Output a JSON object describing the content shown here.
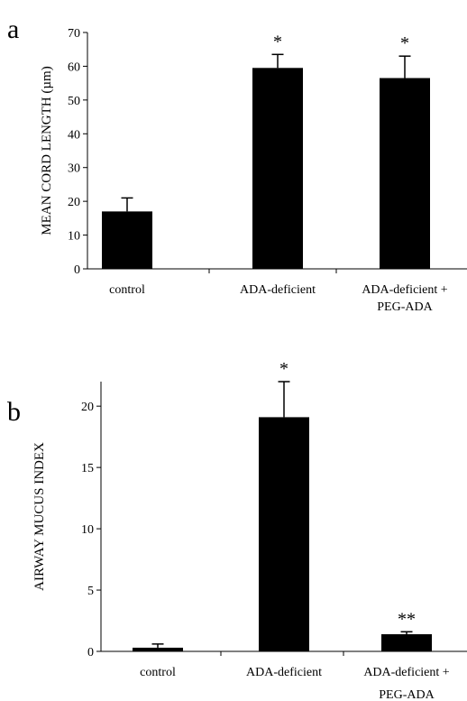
{
  "chart_data": [
    {
      "type": "bar",
      "panel_label": "a",
      "ylabel": "MEAN CORD LENGTH (µm)",
      "ylim": [
        0,
        70
      ],
      "yticks": [
        0,
        10,
        20,
        30,
        40,
        50,
        60,
        70
      ],
      "categories": [
        [
          "control"
        ],
        [
          "ADA-deficient"
        ],
        [
          "ADA-deficient +",
          "PEG-ADA"
        ]
      ],
      "values": [
        17,
        59.5,
        56.5
      ],
      "errors": [
        4,
        4,
        6.5
      ],
      "annotations": [
        "",
        "*",
        "*"
      ],
      "bar_color": "#000000"
    },
    {
      "type": "bar",
      "panel_label": "b",
      "ylabel": "AIRWAY MUCUS INDEX",
      "ylim": [
        0,
        22
      ],
      "yticks": [
        0,
        5,
        10,
        15,
        20
      ],
      "categories": [
        [
          "control"
        ],
        [
          "ADA-deficient"
        ],
        [
          "ADA-deficient +",
          "PEG-ADA"
        ]
      ],
      "values": [
        0.3,
        19.1,
        1.4
      ],
      "errors": [
        0.3,
        2.9,
        0.2
      ],
      "annotations": [
        "",
        "*",
        "**"
      ],
      "bar_color": "#000000"
    }
  ]
}
